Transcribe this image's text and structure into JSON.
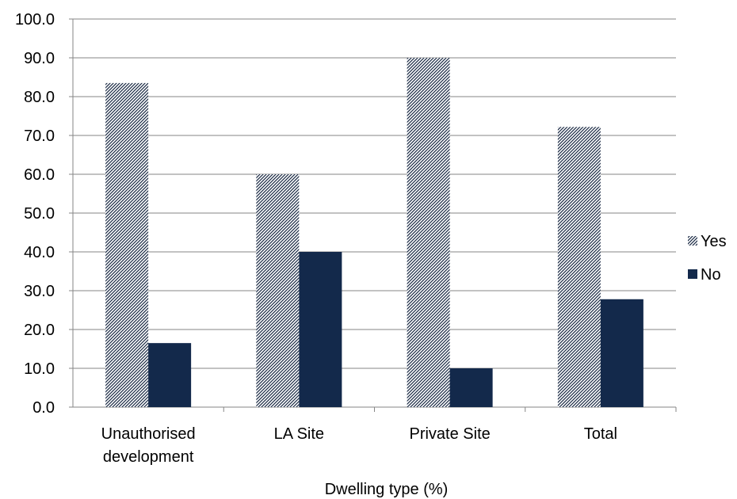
{
  "chart_data": {
    "type": "bar",
    "title": "",
    "xlabel": "Dwelling type (%)",
    "ylabel": "",
    "categories": [
      [
        "Unauthorised",
        "development"
      ],
      [
        "LA Site"
      ],
      [
        "Private Site"
      ],
      [
        "Total"
      ]
    ],
    "series": [
      {
        "name": "Yes",
        "values": [
          83.5,
          60.0,
          90.0,
          72.2
        ],
        "color": "#1a2a44",
        "pattern": "diagonal-hatch"
      },
      {
        "name": "No",
        "values": [
          16.5,
          40.0,
          10.0,
          27.8
        ],
        "color": "#13294b",
        "pattern": "solid"
      }
    ],
    "ylim": [
      0,
      100
    ],
    "yticks": [
      "0.0",
      "10.0",
      "20.0",
      "30.0",
      "40.0",
      "50.0",
      "60.0",
      "70.0",
      "80.0",
      "90.0",
      "100.0"
    ],
    "grid": true,
    "legend": "right"
  }
}
